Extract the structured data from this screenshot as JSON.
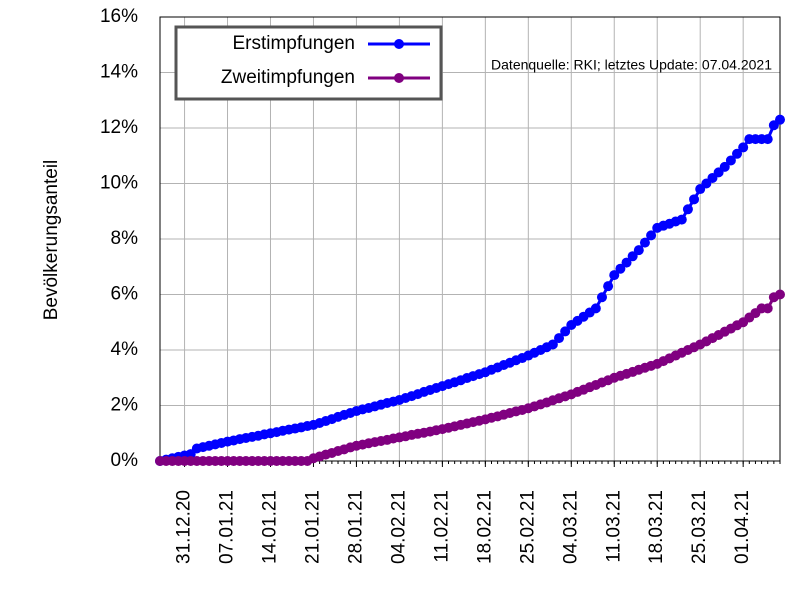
{
  "chart_data": {
    "type": "line",
    "y_label": "Bevölkerungsanteil",
    "annotation": "Datenquelle: RKI; letztes Update: 07.04.2021",
    "x": [
      "2020-12-27",
      "2020-12-28",
      "2020-12-29",
      "2020-12-30",
      "2020-12-31",
      "2021-01-01",
      "2021-01-02",
      "2021-01-03",
      "2021-01-04",
      "2021-01-05",
      "2021-01-06",
      "2021-01-07",
      "2021-01-08",
      "2021-01-09",
      "2021-01-10",
      "2021-01-11",
      "2021-01-12",
      "2021-01-13",
      "2021-01-14",
      "2021-01-15",
      "2021-01-16",
      "2021-01-17",
      "2021-01-18",
      "2021-01-19",
      "2021-01-20",
      "2021-01-21",
      "2021-01-22",
      "2021-01-23",
      "2021-01-24",
      "2021-01-25",
      "2021-01-26",
      "2021-01-27",
      "2021-01-28",
      "2021-01-29",
      "2021-01-30",
      "2021-01-31",
      "2021-02-01",
      "2021-02-02",
      "2021-02-03",
      "2021-02-04",
      "2021-02-05",
      "2021-02-06",
      "2021-02-07",
      "2021-02-08",
      "2021-02-09",
      "2021-02-10",
      "2021-02-11",
      "2021-02-12",
      "2021-02-13",
      "2021-02-14",
      "2021-02-15",
      "2021-02-16",
      "2021-02-17",
      "2021-02-18",
      "2021-02-19",
      "2021-02-20",
      "2021-02-21",
      "2021-02-22",
      "2021-02-23",
      "2021-02-24",
      "2021-02-25",
      "2021-02-26",
      "2021-02-27",
      "2021-02-28",
      "2021-03-01",
      "2021-03-02",
      "2021-03-03",
      "2021-03-04",
      "2021-03-05",
      "2021-03-06",
      "2021-03-07",
      "2021-03-08",
      "2021-03-09",
      "2021-03-10",
      "2021-03-11",
      "2021-03-12",
      "2021-03-13",
      "2021-03-14",
      "2021-03-15",
      "2021-03-16",
      "2021-03-17",
      "2021-03-18",
      "2021-03-19",
      "2021-03-20",
      "2021-03-21",
      "2021-03-22",
      "2021-03-23",
      "2021-03-24",
      "2021-03-25",
      "2021-03-26",
      "2021-03-27",
      "2021-03-28",
      "2021-03-29",
      "2021-03-30",
      "2021-03-31",
      "2021-04-01",
      "2021-04-02",
      "2021-04-03",
      "2021-04-04",
      "2021-04-05",
      "2021-04-06",
      "2021-04-07"
    ],
    "series": [
      {
        "name": "Erstimpfungen",
        "color": "#0000ff",
        "values": [
          0,
          0.05,
          0.1,
          0.15,
          0.2,
          0.25,
          0.45,
          0.5,
          0.55,
          0.6,
          0.65,
          0.7,
          0.74,
          0.79,
          0.83,
          0.87,
          0.91,
          0.96,
          1.0,
          1.04,
          1.09,
          1.13,
          1.17,
          1.21,
          1.26,
          1.3,
          1.37,
          1.44,
          1.51,
          1.59,
          1.66,
          1.73,
          1.8,
          1.86,
          1.91,
          1.97,
          2.03,
          2.09,
          2.14,
          2.2,
          2.27,
          2.34,
          2.41,
          2.49,
          2.56,
          2.63,
          2.7,
          2.77,
          2.84,
          2.91,
          2.99,
          3.06,
          3.13,
          3.2,
          3.29,
          3.37,
          3.46,
          3.54,
          3.63,
          3.71,
          3.8,
          3.9,
          4.0,
          4.1,
          4.2,
          4.43,
          4.67,
          4.9,
          5.05,
          5.2,
          5.35,
          5.5,
          5.9,
          6.3,
          6.7,
          6.93,
          7.15,
          7.38,
          7.6,
          7.87,
          8.13,
          8.4,
          8.48,
          8.55,
          8.63,
          8.7,
          9.07,
          9.43,
          9.8,
          10.0,
          10.2,
          10.4,
          10.6,
          10.83,
          11.07,
          11.3,
          11.6,
          11.6,
          11.6,
          11.6,
          12.1,
          12.3
        ]
      },
      {
        "name": "Zweitimpfungen",
        "color": "#800080",
        "values": [
          0,
          0,
          0,
          0,
          0,
          0,
          0,
          0,
          0,
          0,
          0,
          0,
          0,
          0,
          0,
          0,
          0,
          0,
          0,
          0,
          0,
          0,
          0,
          0,
          0,
          0.1,
          0.16,
          0.23,
          0.29,
          0.36,
          0.42,
          0.49,
          0.55,
          0.59,
          0.64,
          0.68,
          0.72,
          0.76,
          0.81,
          0.85,
          0.89,
          0.94,
          0.98,
          1.02,
          1.06,
          1.11,
          1.15,
          1.2,
          1.25,
          1.3,
          1.35,
          1.4,
          1.45,
          1.5,
          1.56,
          1.61,
          1.67,
          1.73,
          1.79,
          1.84,
          1.9,
          1.97,
          2.04,
          2.11,
          2.19,
          2.26,
          2.33,
          2.4,
          2.49,
          2.57,
          2.66,
          2.74,
          2.83,
          2.91,
          3.0,
          3.07,
          3.14,
          3.21,
          3.29,
          3.36,
          3.43,
          3.5,
          3.6,
          3.7,
          3.8,
          3.9,
          4.0,
          4.1,
          4.2,
          4.31,
          4.43,
          4.54,
          4.66,
          4.77,
          4.89,
          5.0,
          5.17,
          5.33,
          5.5,
          5.5,
          5.9,
          6.0
        ]
      }
    ],
    "xlim": [
      "2020-12-27",
      "2021-04-07"
    ],
    "xticks": [
      {
        "value": "2020-12-31",
        "label": "31.12.20"
      },
      {
        "value": "2021-01-07",
        "label": "07.01.21"
      },
      {
        "value": "2021-01-14",
        "label": "14.01.21"
      },
      {
        "value": "2021-01-21",
        "label": "21.01.21"
      },
      {
        "value": "2021-01-28",
        "label": "28.01.21"
      },
      {
        "value": "2021-02-04",
        "label": "04.02.21"
      },
      {
        "value": "2021-02-11",
        "label": "11.02.21"
      },
      {
        "value": "2021-02-18",
        "label": "18.02.21"
      },
      {
        "value": "2021-02-25",
        "label": "25.02.21"
      },
      {
        "value": "2021-03-04",
        "label": "04.03.21"
      },
      {
        "value": "2021-03-11",
        "label": "11.03.21"
      },
      {
        "value": "2021-03-18",
        "label": "18.03.21"
      },
      {
        "value": "2021-03-25",
        "label": "25.03.21"
      },
      {
        "value": "2021-04-01",
        "label": "01.04.21"
      }
    ],
    "ylim": [
      0,
      16
    ],
    "yticks": [
      {
        "value": 0,
        "label": "0%"
      },
      {
        "value": 2,
        "label": "2%"
      },
      {
        "value": 4,
        "label": "4%"
      },
      {
        "value": 6,
        "label": "6%"
      },
      {
        "value": 8,
        "label": "8%"
      },
      {
        "value": 10,
        "label": "10%"
      },
      {
        "value": 12,
        "label": "12%"
      },
      {
        "value": 14,
        "label": "14%"
      },
      {
        "value": 16,
        "label": "16%"
      }
    ],
    "grid": true
  }
}
